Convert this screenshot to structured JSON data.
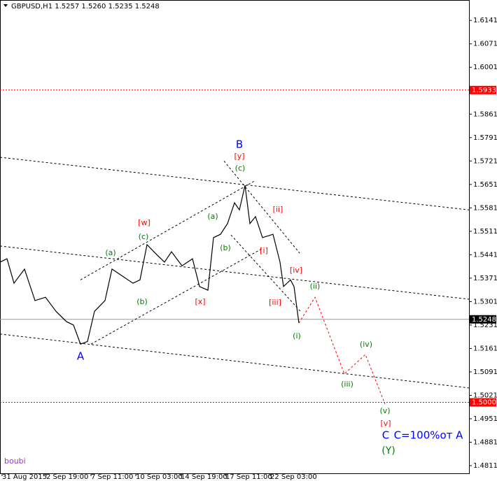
{
  "chart_data": {
    "type": "line",
    "title": "GBPUSD,H1  1.5257 1.5260 1.5235 1.5248",
    "watermark": "boubi",
    "xlim": [
      0,
      670
    ],
    "ylim": [
      1.4788,
      1.6202
    ],
    "xticks": [
      {
        "value": 3,
        "label": "31 Aug 2015"
      },
      {
        "value": 66,
        "label": "2 Sep 19:00"
      },
      {
        "value": 130,
        "label": "7 Sep 11:00"
      },
      {
        "value": 194,
        "label": "10 Sep 03:00"
      },
      {
        "value": 258,
        "label": "14 Sep 19:00"
      },
      {
        "value": 322,
        "label": "17 Sep 11:00"
      },
      {
        "value": 386,
        "label": "22 Sep 03:00"
      }
    ],
    "yticks": [
      1.6141,
      1.6071,
      1.6001,
      1.5861,
      1.5791,
      1.5721,
      1.5651,
      1.5581,
      1.5511,
      1.5441,
      1.5371,
      1.5301,
      1.5231,
      1.5161,
      1.5091,
      1.5021,
      1.4951,
      1.4881,
      1.4811
    ],
    "levels": [
      {
        "value": 1.5933,
        "color": "#ff0000"
      },
      {
        "value": 1.5248,
        "color": "#000000"
      },
      {
        "value": 1.5,
        "label": "1.5000",
        "color": "#ff0000"
      }
    ],
    "series": [
      {
        "name": "GBPUSD",
        "color": "#000000",
        "dash": false,
        "x": [
          0,
          10,
          20,
          35,
          50,
          65,
          80,
          95,
          105,
          115,
          125,
          135,
          150,
          160,
          175,
          190,
          200,
          210,
          225,
          235,
          245,
          260,
          275,
          285,
          297,
          305,
          315,
          325,
          335,
          342,
          350,
          357,
          365,
          375,
          390,
          400,
          405,
          415,
          420,
          427
        ],
        "values": [
          1.5419,
          1.5429,
          1.5356,
          1.5398,
          1.5304,
          1.5314,
          1.5272,
          1.5241,
          1.5231,
          1.5174,
          1.5182,
          1.5272,
          1.5304,
          1.5398,
          1.5377,
          1.5356,
          1.5366,
          1.5471,
          1.5439,
          1.5419,
          1.545,
          1.5408,
          1.5429,
          1.5346,
          1.5335,
          1.5492,
          1.5502,
          1.5534,
          1.5596,
          1.5575,
          1.5648,
          1.5534,
          1.5555,
          1.5492,
          1.5502,
          1.5419,
          1.5346,
          1.5366,
          1.5346,
          1.5237
        ]
      },
      {
        "name": "Forecast",
        "color": "#ff0000",
        "dash": true,
        "x": [
          427,
          450,
          492,
          522,
          550
        ],
        "values": [
          1.5237,
          1.5314,
          1.5085,
          1.5143,
          1.4995
        ]
      },
      {
        "name": "Channel 1",
        "color": "#000000",
        "dash": true,
        "x": [
          0,
          670
        ],
        "values": [
          1.5732,
          1.5575
        ]
      },
      {
        "name": "Channel 2",
        "color": "#000000",
        "dash": true,
        "x": [
          0,
          670
        ],
        "values": [
          1.5467,
          1.5308
        ]
      },
      {
        "name": "Channel 3",
        "color": "#000000",
        "dash": true,
        "x": [
          0,
          670
        ],
        "values": [
          1.5204,
          1.5043
        ]
      },
      {
        "name": "Channel 4",
        "color": "#000000",
        "dash": true,
        "x": [
          115,
          365
        ],
        "values": [
          1.5366,
          1.5663
        ]
      },
      {
        "name": "Channel 5",
        "color": "#000000",
        "dash": true,
        "x": [
          130,
          375
        ],
        "values": [
          1.5174,
          1.546
        ]
      },
      {
        "name": "Channel 6",
        "color": "#000000",
        "dash": true,
        "x": [
          320,
          428
        ],
        "values": [
          1.5721,
          1.5446
        ]
      },
      {
        "name": "Channel 7",
        "color": "#000000",
        "dash": true,
        "x": [
          330,
          430
        ],
        "values": [
          1.55,
          1.527
        ]
      }
    ],
    "annotations": [
      {
        "text": "A",
        "color": "#0000ff"
      },
      {
        "text": "B",
        "color": "#0000ff"
      },
      {
        "text": "[y]",
        "color": "#ff0000"
      },
      {
        "text": "(c)",
        "color": "#008000"
      },
      {
        "text": "(a)",
        "color": "#008000"
      },
      {
        "text": "(b)",
        "color": "#008000"
      },
      {
        "text": "(c)",
        "color": "#008000"
      },
      {
        "text": "[w]",
        "color": "#ff0000"
      },
      {
        "text": "[x]",
        "color": "#ff0000"
      },
      {
        "text": "(a)",
        "color": "#008000"
      },
      {
        "text": "(b)",
        "color": "#008000"
      },
      {
        "text": "[i]",
        "color": "#ff0000"
      },
      {
        "text": "[ii]",
        "color": "#ff0000"
      },
      {
        "text": "[iii]",
        "color": "#ff0000"
      },
      {
        "text": "[iv]",
        "color": "#ff0000"
      },
      {
        "text": "(i)",
        "color": "#008000"
      },
      {
        "text": "(ii)",
        "color": "#008000"
      },
      {
        "text": "(iii)",
        "color": "#008000"
      },
      {
        "text": "(iv)",
        "color": "#008000"
      },
      {
        "text": "(v)",
        "color": "#008000"
      },
      {
        "text": "[v]",
        "color": "#ff0000"
      },
      {
        "text": "C",
        "color": "#0000ff"
      },
      {
        "text": "C=100%от A",
        "color": "#0000ff"
      },
      {
        "text": "(Y)",
        "color": "#008000"
      }
    ]
  }
}
